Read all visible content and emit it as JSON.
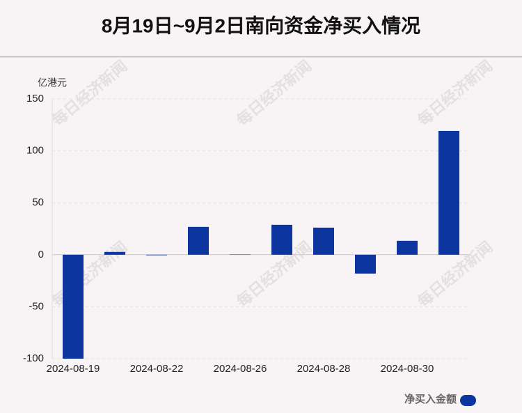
{
  "chart_data": {
    "type": "bar",
    "title": "8月19日~9月2日南向资金净买入情况",
    "y_axis_label": "亿港元",
    "watermark": "每日经济新闻",
    "categories": [
      "2024-08-19",
      null,
      "2024-08-22",
      null,
      "2024-08-26",
      null,
      "2024-08-28",
      null,
      "2024-08-30",
      null
    ],
    "series": [
      {
        "name": "净买入金额",
        "color": "#0d35a0",
        "values": [
          -100,
          2.7,
          -0.5,
          26.8,
          0.3,
          28.8,
          26.1,
          -18.1,
          13.4,
          119.2
        ]
      }
    ],
    "ylim": [
      -100,
      150
    ],
    "yticks": [
      -100,
      -50,
      0,
      50,
      100,
      150
    ],
    "grid": true,
    "legend": "bottom-right"
  }
}
